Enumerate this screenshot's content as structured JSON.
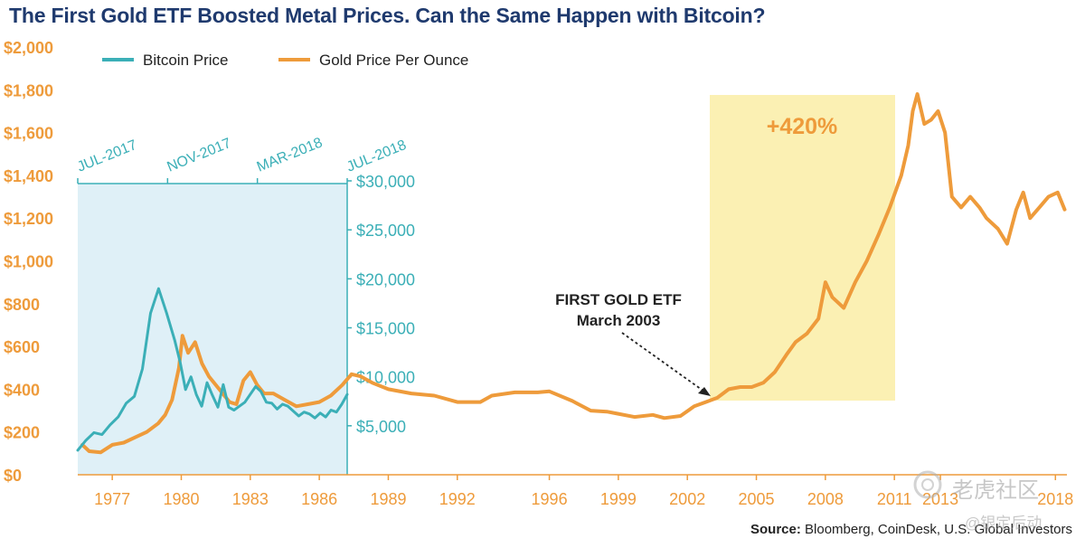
{
  "title": "The First Gold ETF Boosted Metal Prices. Can the Same Happen with Bitcoin?",
  "source": {
    "label": "Source:",
    "text": "Bloomberg, CoinDesk, U.S. Global Investors"
  },
  "watermark": {
    "line1": "老虎社区",
    "line2": "@银定后动"
  },
  "colors": {
    "gold": "#ee9b3b",
    "bitcoin": "#3bafb7",
    "btc_panel": "#dff0f7",
    "highlight": "#fbf0b3",
    "axis_gold": "#ee9b3b",
    "axis_btc": "#3bafb7"
  },
  "chart_data": {
    "type": "line",
    "title": "The First Gold ETF Boosted Metal Prices. Can the Same Happen with Bitcoin?",
    "legend": [
      "Bitcoin Price",
      "Gold Price Per Ounce"
    ],
    "gold_axis": {
      "min": 0,
      "max": 2000,
      "ticks": [
        0,
        200,
        400,
        600,
        800,
        1000,
        1200,
        1400,
        1600,
        1800,
        2000
      ],
      "tick_labels": [
        "$0",
        "$200",
        "$400",
        "$600",
        "$800",
        "$1,000",
        "$1,200",
        "$1,400",
        "$1,600",
        "$1,800",
        "$2,000"
      ]
    },
    "x_axis": {
      "min": 1975.5,
      "max": 2018.5,
      "ticks": [
        1977,
        1980,
        1983,
        1986,
        1989,
        1992,
        1996,
        1999,
        2002,
        2005,
        2008,
        2011,
        2013,
        2018
      ],
      "tick_labels": [
        "1977",
        "1980",
        "1983",
        "1986",
        "1989",
        "1992",
        "1996",
        "1999",
        "2002",
        "2005",
        "2008",
        "2011",
        "2013",
        "2018"
      ]
    },
    "btc_axis": {
      "min": 0,
      "max": 30000,
      "ticks": [
        5000,
        10000,
        15000,
        20000,
        25000,
        30000
      ],
      "tick_labels": [
        "$5,000",
        "$10,000",
        "$15,000",
        "$20,000",
        "$25,000",
        "$30,000"
      ]
    },
    "btc_time_axis": {
      "ticks": [
        "JUL-2017",
        "NOV-2017",
        "MAR-2018",
        "JUL-2018"
      ]
    },
    "gold_series": {
      "name": "Gold Price Per Ounce",
      "x": [
        1975.7,
        1976.0,
        1976.5,
        1977.0,
        1977.5,
        1978.0,
        1978.5,
        1979.0,
        1979.3,
        1979.6,
        1979.9,
        1980.05,
        1980.3,
        1980.6,
        1980.9,
        1981.2,
        1981.5,
        1981.8,
        1982.1,
        1982.4,
        1982.7,
        1983.0,
        1983.3,
        1983.6,
        1984.0,
        1984.5,
        1985.0,
        1985.5,
        1986.0,
        1986.5,
        1987.0,
        1987.4,
        1987.8,
        1988.3,
        1989.0,
        1990.0,
        1991.0,
        1992.0,
        1993.0,
        1993.5,
        1994.5,
        1995.5,
        1996.0,
        1997.0,
        1997.8,
        1998.5,
        1999.0,
        1999.7,
        2000.5,
        2001.0,
        2001.7,
        2002.3,
        2002.8,
        2003.3,
        2003.8,
        2004.3,
        2004.8,
        2005.3,
        2005.8,
        2006.3,
        2006.7,
        2007.2,
        2007.7,
        2008.0,
        2008.3,
        2008.8,
        2009.3,
        2009.8,
        2010.3,
        2010.8,
        2011.3,
        2011.6,
        2011.8,
        2012.0,
        2012.3,
        2012.6,
        2012.9,
        2013.2,
        2013.5,
        2013.9,
        2014.3,
        2014.7,
        2015.0,
        2015.5,
        2015.9,
        2016.3,
        2016.6,
        2016.9,
        2017.3,
        2017.7,
        2018.1,
        2018.4
      ],
      "values": [
        140,
        110,
        105,
        140,
        150,
        175,
        200,
        240,
        280,
        350,
        500,
        650,
        570,
        620,
        520,
        460,
        420,
        380,
        340,
        330,
        440,
        480,
        420,
        380,
        380,
        350,
        320,
        330,
        340,
        370,
        420,
        470,
        460,
        430,
        400,
        380,
        370,
        340,
        340,
        370,
        385,
        385,
        390,
        345,
        300,
        295,
        285,
        270,
        280,
        265,
        275,
        320,
        340,
        360,
        400,
        410,
        410,
        430,
        480,
        560,
        620,
        660,
        730,
        900,
        830,
        780,
        900,
        1000,
        1120,
        1250,
        1400,
        1540,
        1700,
        1780,
        1640,
        1660,
        1700,
        1600,
        1300,
        1250,
        1300,
        1250,
        1200,
        1150,
        1080,
        1240,
        1320,
        1200,
        1250,
        1300,
        1320,
        1240
      ]
    },
    "btc_series": {
      "name": "Bitcoin Price",
      "x": [
        0.0,
        0.03,
        0.06,
        0.09,
        0.12,
        0.15,
        0.18,
        0.21,
        0.24,
        0.27,
        0.3,
        0.33,
        0.36,
        0.38,
        0.4,
        0.42,
        0.44,
        0.46,
        0.48,
        0.5,
        0.52,
        0.54,
        0.56,
        0.58,
        0.6,
        0.62,
        0.64,
        0.66,
        0.68,
        0.7,
        0.72,
        0.74,
        0.76,
        0.78,
        0.8,
        0.82,
        0.84,
        0.86,
        0.88,
        0.9,
        0.92,
        0.94,
        0.96,
        0.98,
        1.0
      ],
      "values": [
        2500,
        3500,
        4300,
        4100,
        5100,
        5900,
        7300,
        8000,
        10800,
        16500,
        19000,
        16500,
        13700,
        11500,
        8700,
        10000,
        8200,
        7000,
        9400,
        8100,
        6900,
        9200,
        6900,
        6600,
        7000,
        7400,
        8200,
        9000,
        8500,
        7400,
        7300,
        6700,
        7200,
        7000,
        6500,
        6000,
        6400,
        6200,
        5800,
        6300,
        5900,
        6600,
        6400,
        7200,
        8200
      ]
    },
    "annotations": [
      {
        "text": "FIRST GOLD ETF",
        "text2": "March 2003",
        "x": 2003.0
      },
      {
        "text": "+420%",
        "x_start": 2003.0,
        "x_end": 2010.0
      }
    ]
  }
}
